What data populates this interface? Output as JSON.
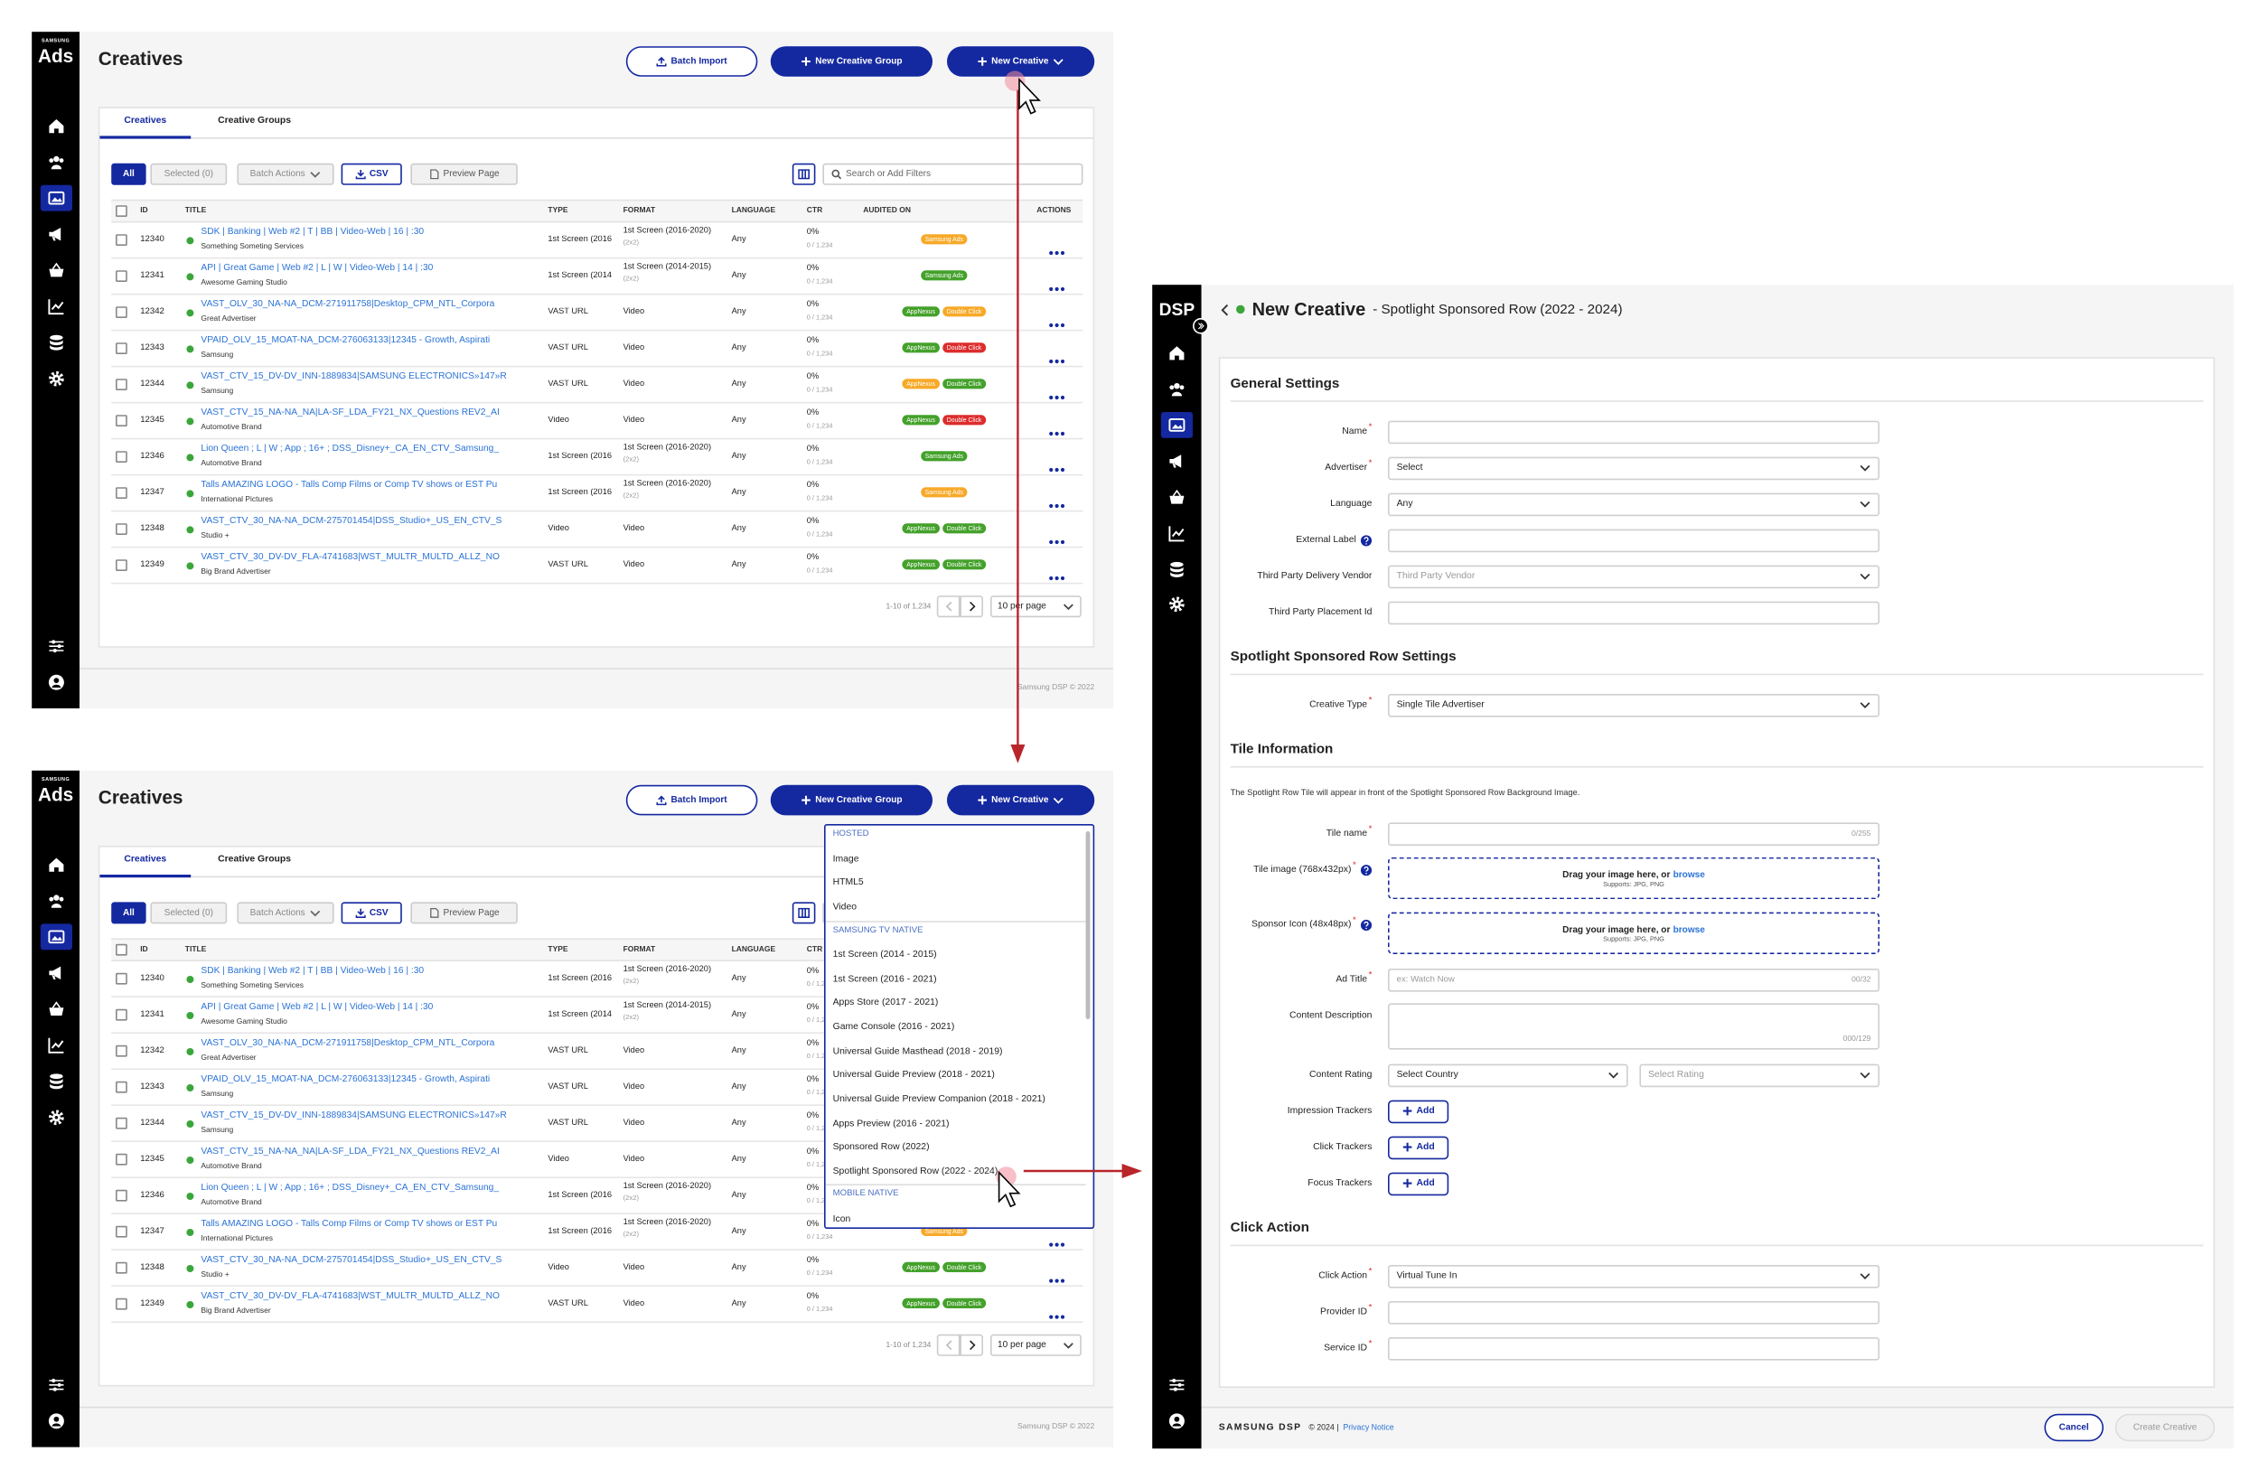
{
  "creatives_page": {
    "brand_small": "SAMSUNG",
    "brand": "Ads",
    "title": "Creatives",
    "buttons": {
      "batch_import": "Batch Import",
      "new_group": "New Creative Group",
      "new_creative": "New Creative"
    },
    "tabs": [
      "Creatives",
      "Creative Groups"
    ],
    "toolbar": {
      "all": "All",
      "selected": "Selected (0)",
      "batch_actions": "Batch Actions",
      "csv": "CSV",
      "preview": "Preview Page",
      "search_placeholder": "Search or Add Filters"
    },
    "columns": [
      "ID",
      "TITLE",
      "TYPE",
      "FORMAT",
      "LANGUAGE",
      "CTR",
      "AUDITED ON",
      "ACTIONS"
    ],
    "rows": [
      {
        "id": "12340",
        "title": "SDK | Banking | Web #2 | T | BB | Video-Web | 16 | :30",
        "advertiser": "Something Someting Services",
        "type": "1st Screen (2016",
        "format": "1st Screen (2016-2020)",
        "format_size": "(2x2)",
        "language": "Any",
        "ctr": "0%",
        "ctr_count": "0 / 1,234",
        "audits": [
          {
            "label": "Samsung Ads",
            "color": "#f7a928"
          }
        ]
      },
      {
        "id": "12341",
        "title": "API | Great Game | Web #2 | L | W | Video-Web | 14 | :30",
        "advertiser": "Awesome Gaming Studio",
        "type": "1st Screen (2014",
        "format": "1st Screen (2014-2015)",
        "format_size": "(2x2)",
        "language": "Any",
        "ctr": "0%",
        "ctr_count": "0 / 1,234",
        "audits": [
          {
            "label": "Samsung Ads",
            "color": "#44a12b"
          }
        ]
      },
      {
        "id": "12342",
        "title": "VAST_OLV_30_NA-NA_DCM-271911758|Desktop_CPM_NTL_Corpora",
        "advertiser": "Great Advertiser",
        "type": "VAST URL",
        "format": "Video",
        "language": "Any",
        "ctr": "0%",
        "ctr_count": "0 / 1,234",
        "audits": [
          {
            "label": "AppNexus",
            "color": "#44a12b"
          },
          {
            "label": "Double Click",
            "color": "#f7a928"
          }
        ]
      },
      {
        "id": "12343",
        "title": "VPAID_OLV_15_MOAT-NA_DCM-276063133|12345 - Growth, Aspirati",
        "advertiser": "Samsung",
        "type": "VAST URL",
        "format": "Video",
        "language": "Any",
        "ctr": "0%",
        "ctr_count": "0 / 1,234",
        "audits": [
          {
            "label": "AppNexus",
            "color": "#44a12b"
          },
          {
            "label": "Double Click",
            "color": "#dd2c2c"
          }
        ]
      },
      {
        "id": "12344",
        "title": "VAST_CTV_15_DV-DV_INN-1889834|SAMSUNG ELECTRONICS»147»R",
        "advertiser": "Samsung",
        "type": "VAST URL",
        "format": "Video",
        "language": "Any",
        "ctr": "0%",
        "ctr_count": "0 / 1,234",
        "audits": [
          {
            "label": "AppNexus",
            "color": "#f7a928"
          },
          {
            "label": "Double Click",
            "color": "#44a12b"
          }
        ]
      },
      {
        "id": "12345",
        "title": "VAST_CTV_15_NA-NA_NA|LA-SF_LDA_FY21_NX_Questions REV2_AI",
        "advertiser": "Automotive Brand",
        "type": "Video",
        "format": "Video",
        "language": "Any",
        "ctr": "0%",
        "ctr_count": "0 / 1,234",
        "audits": [
          {
            "label": "AppNexus",
            "color": "#44a12b"
          },
          {
            "label": "Double Click",
            "color": "#dd2c2c"
          }
        ]
      },
      {
        "id": "12346",
        "title": "Lion Queen ; L | W ; App ; 16+ ; DSS_Disney+_CA_EN_CTV_Samsung_",
        "advertiser": "Automotive Brand",
        "type": "1st Screen (2016",
        "format": "1st Screen (2016-2020)",
        "format_size": "(2x2)",
        "language": "Any",
        "ctr": "0%",
        "ctr_count": "0 / 1,234",
        "audits": [
          {
            "label": "Samsung Ads",
            "color": "#44a12b"
          }
        ]
      },
      {
        "id": "12347",
        "title": "Talls AMAZING LOGO - Talls Comp Films or Comp TV shows or EST Pu",
        "advertiser": "International Pictures",
        "type": "1st Screen (2016",
        "format": "1st Screen (2016-2020)",
        "format_size": "(2x2)",
        "language": "Any",
        "ctr": "0%",
        "ctr_count": "0 / 1,234",
        "audits": [
          {
            "label": "Samsung Ads",
            "color": "#f7a928"
          }
        ]
      },
      {
        "id": "12348",
        "title": "VAST_CTV_30_NA-NA_DCM-275701454|DSS_Studio+_US_EN_CTV_S",
        "advertiser": "Studio +",
        "type": "Video",
        "format": "Video",
        "language": "Any",
        "ctr": "0%",
        "ctr_count": "0 / 1,234",
        "audits": [
          {
            "label": "AppNexus",
            "color": "#44a12b"
          },
          {
            "label": "Double Click",
            "color": "#44a12b"
          }
        ]
      },
      {
        "id": "12349",
        "title": "VAST_CTV_30_DV-DV_FLA-4741683|WST_MULTR_MULTD_ALLZ_NO",
        "advertiser": "Big Brand Advertiser",
        "type": "VAST URL",
        "format": "Video",
        "language": "Any",
        "ctr": "0%",
        "ctr_count": "0 / 1,234",
        "audits": [
          {
            "label": "AppNexus",
            "color": "#44a12b"
          },
          {
            "label": "Double Click",
            "color": "#44a12b"
          }
        ]
      }
    ],
    "pagination": {
      "range": "1-10 of 1,234",
      "per_page": "10 per page"
    },
    "footer": "Samsung DSP © 2022"
  },
  "new_creative_menu": {
    "groups": [
      {
        "heading": "HOSTED",
        "items": [
          "Image",
          "HTML5",
          "Video"
        ]
      },
      {
        "heading": "SAMSUNG TV NATIVE",
        "items": [
          "1st Screen (2014 - 2015)",
          "1st Screen (2016 - 2021)",
          "Apps Store (2017 - 2021)",
          "Game Console (2016 - 2021)",
          "Universal Guide Masthead (2018 - 2019)",
          "Universal Guide Preview (2018 - 2021)",
          "Universal Guide Preview Companion (2018 - 2021)",
          "Apps Preview (2016 - 2021)",
          "Sponsored Row (2022)",
          "Spotlight Sponsored Row (2022 - 2024)"
        ]
      },
      {
        "heading": "MOBILE NATIVE",
        "items": [
          "Icon"
        ]
      }
    ]
  },
  "new_creative_form": {
    "brand": "DSP",
    "title": "New Creative",
    "subtitle": "- Spotlight Sponsored Row (2022 - 2024)",
    "required_mark": "*",
    "sections": [
      {
        "heading": "General Settings",
        "fields": [
          {
            "label": "Name",
            "kind": "input",
            "required": true
          },
          {
            "label": "Advertiser",
            "kind": "select",
            "value": "Select",
            "required": true
          },
          {
            "label": "Language",
            "kind": "select",
            "value": "Any"
          },
          {
            "label": "External Label",
            "kind": "input",
            "help": true
          },
          {
            "label": "Third Party Delivery Vendor",
            "kind": "select",
            "placeholder": "Third Party Vendor"
          },
          {
            "label": "Third Party Placement Id",
            "kind": "input"
          }
        ]
      },
      {
        "heading": "Spotlight Sponsored Row Settings",
        "fields": [
          {
            "label": "Creative Type",
            "kind": "select",
            "value": "Single Tile Advertiser",
            "required": true
          }
        ]
      },
      {
        "heading": "Tile Information",
        "note": "The Spotlight Row Tile will appear in front of  the Spotlight Sponsored Row Background Image.",
        "fields": [
          {
            "label": "Tile name",
            "kind": "input",
            "required": true,
            "counter": "0/255"
          },
          {
            "label": "Tile image (768x432px)",
            "kind": "dropzone",
            "required": true,
            "help": true,
            "text": "Drag your image here, or",
            "link": "browse",
            "note": "Supports: JPG, PNG"
          },
          {
            "label": "Sponsor Icon (48x48px)",
            "kind": "dropzone",
            "required": true,
            "help": true,
            "text": "Drag your image here, or",
            "link": "browse",
            "note": "Supports: JPG, PNG"
          },
          {
            "label": "Ad Title",
            "kind": "input",
            "required": true,
            "placeholder": "ex: Watch Now",
            "counter": "00/32"
          },
          {
            "label": "Content Description",
            "kind": "textarea",
            "counter": "000/129"
          },
          {
            "label": "Content Rating",
            "kind": "select_pair",
            "options": [
              "Select Country",
              "Select Rating"
            ]
          },
          {
            "label": "Impression Trackers",
            "kind": "add",
            "button": "Add"
          },
          {
            "label": "Click Trackers",
            "kind": "add",
            "button": "Add"
          },
          {
            "label": "Focus Trackers",
            "kind": "add",
            "button": "Add"
          }
        ]
      },
      {
        "heading": "Click Action",
        "fields": [
          {
            "label": "Click Action",
            "kind": "select",
            "value": "Virtual Tune In",
            "required": true
          },
          {
            "label": "Provider ID",
            "kind": "input",
            "required": true
          },
          {
            "label": "Service ID",
            "kind": "input",
            "required": true
          }
        ]
      }
    ],
    "footer": {
      "brand": "SAMSUNG DSP",
      "copyright": "© 2024 |",
      "privacy": "Privacy Notice"
    },
    "actions": {
      "cancel": "Cancel",
      "create": "Create Creative"
    }
  }
}
